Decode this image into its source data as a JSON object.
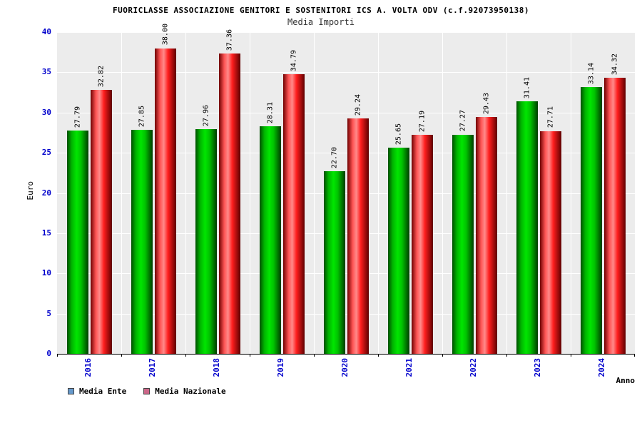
{
  "chart_data": {
    "type": "bar",
    "title": "FUORICLASSE ASSOCIAZIONE GENITORI E SOSTENITORI ICS A. VOLTA ODV (c.f.92073950138)",
    "subtitle": "Media Importi",
    "xlabel": "Anno",
    "ylabel": "Euro",
    "categories": [
      "2016",
      "2017",
      "2018",
      "2019",
      "2020",
      "2021",
      "2022",
      "2023",
      "2024"
    ],
    "series": [
      {
        "name": "Media Ente",
        "color": "#00cc00",
        "values": [
          27.79,
          27.85,
          27.96,
          28.31,
          22.7,
          25.65,
          27.27,
          31.41,
          33.14
        ]
      },
      {
        "name": "Media Nazionale",
        "color": "#ff3333",
        "values": [
          32.82,
          38.0,
          37.36,
          34.79,
          29.24,
          27.19,
          29.43,
          27.71,
          34.32
        ]
      }
    ],
    "ylim": [
      0,
      40
    ],
    "yticks": [
      0,
      5,
      10,
      15,
      20,
      25,
      30,
      35,
      40
    ],
    "grid": true,
    "value_labels_rotated": true,
    "axis_tick_color": "#0000cc",
    "plot_background": "#ececec",
    "legend_position": "bottom-left"
  },
  "legend": {
    "items": [
      {
        "label": "Media Ente",
        "color": "#6699cc"
      },
      {
        "label": "Media Nazionale",
        "color": "#cc6688"
      }
    ]
  }
}
